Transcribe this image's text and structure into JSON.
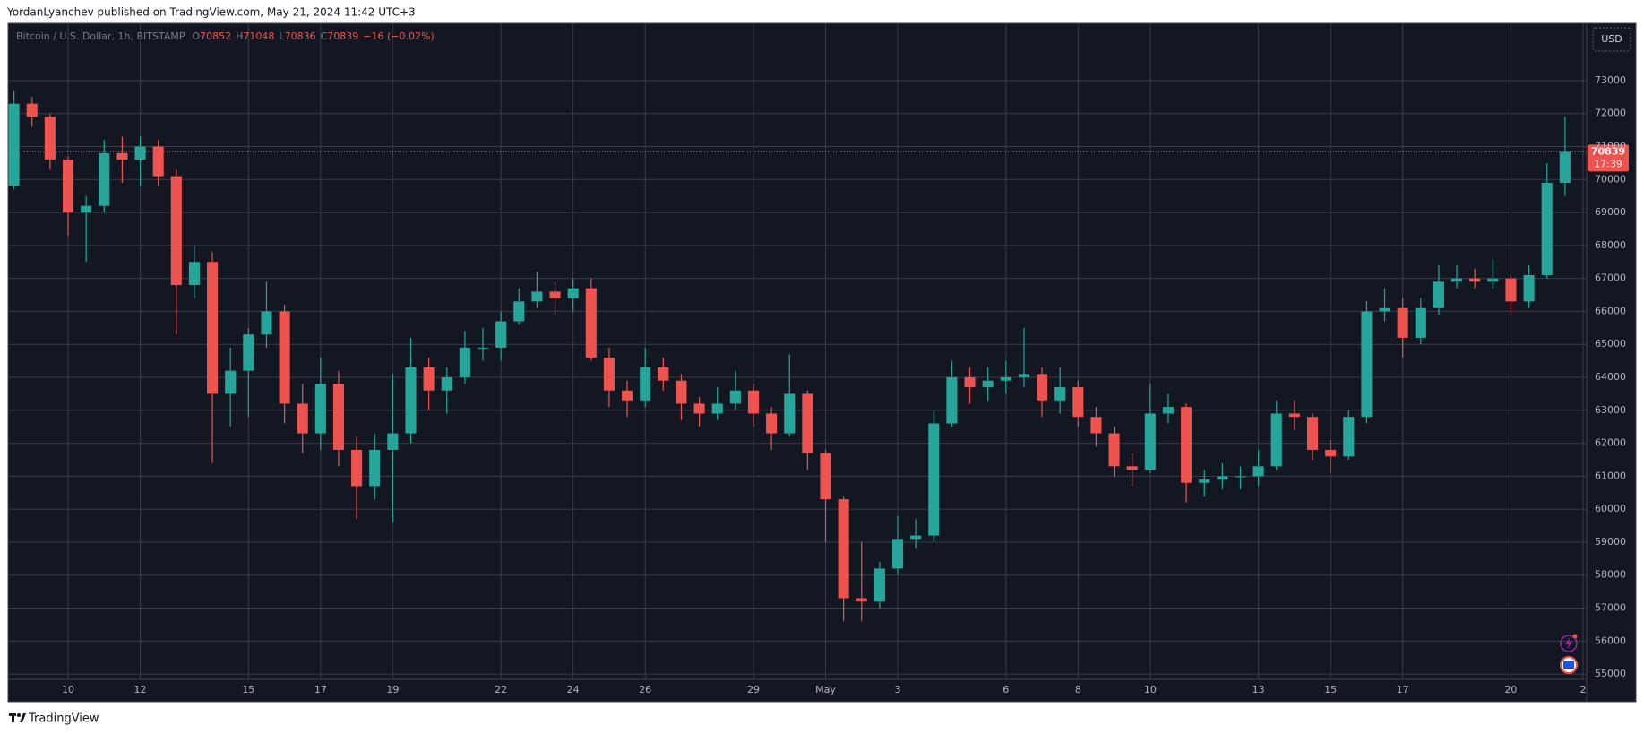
{
  "header": "YordanLyanchev published on TradingView.com, May 21, 2024 11:42 UTC+3",
  "footer": "TradingView",
  "chart_data": {
    "type": "candlestick",
    "legend": {
      "symbol": "Bitcoin / U.S. Dollar, 1h, BITSTAMP",
      "ohlc": [
        {
          "label": "O",
          "value": 70852
        },
        {
          "label": "H",
          "value": 71048
        },
        {
          "label": "L",
          "value": 70836
        },
        {
          "label": "C",
          "value": 70839
        }
      ],
      "change": "−16 (−0.02%)"
    },
    "currency": "USD",
    "price_tag": {
      "value": 70839,
      "countdown": "17:39"
    },
    "up_color": "#26a69a",
    "down_color": "#ef5350",
    "grid": true,
    "xlim": [
      8.41,
      52.1
    ],
    "xticks": [
      10,
      12,
      15,
      17,
      19,
      22,
      24,
      26,
      29,
      {
        "value": 31,
        "label": "May"
      },
      {
        "value": 33,
        "label": "3"
      },
      {
        "value": 36,
        "label": "6"
      },
      {
        "value": 38,
        "label": "8"
      },
      {
        "value": 40,
        "label": "10"
      },
      {
        "value": 43,
        "label": "13"
      },
      {
        "value": 45,
        "label": "15"
      },
      {
        "value": 47,
        "label": "17"
      },
      {
        "value": 50,
        "label": "20"
      },
      {
        "value": 52,
        "label": "2"
      }
    ],
    "ylim": [
      54840,
      74710
    ],
    "yticks": [
      55000,
      56000,
      57000,
      58000,
      59000,
      60000,
      61000,
      62000,
      63000,
      64000,
      65000,
      66000,
      67000,
      68000,
      69000,
      70000,
      71000,
      72000,
      73000
    ],
    "x": [
      8.5,
      9,
      9.5,
      10,
      10.5,
      11,
      11.5,
      12,
      12.5,
      13,
      13.5,
      14,
      14.5,
      15,
      15.5,
      16,
      16.5,
      17,
      17.5,
      18,
      18.5,
      19,
      19.5,
      20,
      20.5,
      21,
      21.5,
      22,
      22.5,
      23,
      23.5,
      24,
      24.5,
      25,
      25.5,
      26,
      26.5,
      27,
      27.5,
      28,
      28.5,
      29,
      29.5,
      30,
      30.5,
      31,
      31.5,
      32,
      32.5,
      33,
      33.5,
      34,
      34.5,
      35,
      35.5,
      36,
      36.5,
      37,
      37.5,
      38,
      38.5,
      39,
      39.5,
      40,
      40.5,
      41,
      41.5,
      42,
      42.5,
      43,
      43.5,
      44,
      44.5,
      45,
      45.5,
      46,
      46.5,
      47,
      47.5,
      48,
      48.5,
      49,
      49.5,
      50,
      50.5,
      51,
      51.5
    ],
    "candles": [
      [
        69800,
        72700,
        69700,
        72300
      ],
      [
        72300,
        72500,
        71600,
        71900
      ],
      [
        71900,
        72000,
        70300,
        70600
      ],
      [
        70600,
        70700,
        68300,
        69000
      ],
      [
        69000,
        69500,
        67500,
        69200
      ],
      [
        69200,
        71200,
        69000,
        70800
      ],
      [
        70800,
        71300,
        69900,
        70600
      ],
      [
        70600,
        71300,
        69800,
        71000
      ],
      [
        71000,
        71200,
        69800,
        70100
      ],
      [
        70100,
        70300,
        65300,
        66800
      ],
      [
        66800,
        68000,
        66400,
        67500
      ],
      [
        67500,
        67800,
        61400,
        63500
      ],
      [
        63500,
        64900,
        62500,
        64200
      ],
      [
        64200,
        65500,
        62800,
        65300
      ],
      [
        65300,
        66900,
        64900,
        66000
      ],
      [
        66000,
        66200,
        62600,
        63200
      ],
      [
        63200,
        63800,
        61700,
        62300
      ],
      [
        62300,
        64600,
        61800,
        63800
      ],
      [
        63800,
        64200,
        61300,
        61800
      ],
      [
        61800,
        62200,
        59700,
        60700
      ],
      [
        60700,
        62300,
        60300,
        61800
      ],
      [
        61800,
        64100,
        59600,
        62300
      ],
      [
        62300,
        65200,
        62000,
        64300
      ],
      [
        64300,
        64600,
        63000,
        63600
      ],
      [
        63600,
        64300,
        62900,
        64000
      ],
      [
        64000,
        65400,
        63800,
        64900
      ],
      [
        64900,
        65500,
        64500,
        64900
      ],
      [
        64900,
        66000,
        64500,
        65700
      ],
      [
        65700,
        66700,
        65600,
        66300
      ],
      [
        66300,
        67200,
        66100,
        66600
      ],
      [
        66600,
        66900,
        65900,
        66400
      ],
      [
        66400,
        67000,
        66000,
        66700
      ],
      [
        66700,
        67000,
        64500,
        64600
      ],
      [
        64600,
        64900,
        63100,
        63600
      ],
      [
        63600,
        63900,
        62800,
        63300
      ],
      [
        63300,
        64900,
        63100,
        64300
      ],
      [
        64300,
        64600,
        63600,
        63900
      ],
      [
        63900,
        64100,
        62700,
        63200
      ],
      [
        63200,
        63400,
        62500,
        62900
      ],
      [
        62900,
        63700,
        62700,
        63200
      ],
      [
        63200,
        64200,
        63000,
        63600
      ],
      [
        63600,
        63800,
        62500,
        62900
      ],
      [
        62900,
        63100,
        61800,
        62300
      ],
      [
        62300,
        64700,
        62200,
        63500
      ],
      [
        63500,
        63600,
        61200,
        61700
      ],
      [
        61700,
        61800,
        59000,
        60300
      ],
      [
        60300,
        60400,
        56600,
        57300
      ],
      [
        57300,
        59000,
        56600,
        57200
      ],
      [
        57200,
        58400,
        57000,
        58200
      ],
      [
        58200,
        59800,
        58000,
        59100
      ],
      [
        59100,
        59700,
        58800,
        59200
      ],
      [
        59200,
        63000,
        59000,
        62600
      ],
      [
        62600,
        64500,
        62500,
        64000
      ],
      [
        64000,
        64300,
        63200,
        63700
      ],
      [
        63700,
        64300,
        63300,
        63900
      ],
      [
        63900,
        64500,
        63500,
        64000
      ],
      [
        64000,
        65500,
        63700,
        64100
      ],
      [
        64100,
        64300,
        62800,
        63300
      ],
      [
        63300,
        64300,
        62900,
        63700
      ],
      [
        63700,
        63900,
        62500,
        62800
      ],
      [
        62800,
        63100,
        61900,
        62300
      ],
      [
        62300,
        62500,
        61000,
        61300
      ],
      [
        61300,
        61700,
        60700,
        61200
      ],
      [
        61200,
        63800,
        61100,
        62900
      ],
      [
        62900,
        63500,
        62600,
        63100
      ],
      [
        63100,
        63200,
        60200,
        60800
      ],
      [
        60800,
        61200,
        60400,
        60900
      ],
      [
        60900,
        61400,
        60600,
        61000
      ],
      [
        61000,
        61300,
        60600,
        61000
      ],
      [
        61000,
        61800,
        60700,
        61300
      ],
      [
        61300,
        63300,
        61200,
        62900
      ],
      [
        62900,
        63300,
        62400,
        62800
      ],
      [
        62800,
        62900,
        61500,
        61800
      ],
      [
        61800,
        62100,
        61100,
        61600
      ],
      [
        61600,
        63000,
        61500,
        62800
      ],
      [
        62800,
        66300,
        62600,
        66000
      ],
      [
        66000,
        66700,
        65700,
        66100
      ],
      [
        66100,
        66400,
        64600,
        65200
      ],
      [
        65200,
        66400,
        65000,
        66100
      ],
      [
        66100,
        67400,
        65900,
        66900
      ],
      [
        66900,
        67400,
        66700,
        67000
      ],
      [
        67000,
        67300,
        66700,
        66900
      ],
      [
        66900,
        67600,
        66700,
        67000
      ],
      [
        67000,
        67100,
        65900,
        66300
      ],
      [
        66300,
        67400,
        66100,
        67100
      ],
      [
        67100,
        70500,
        67000,
        69900
      ],
      [
        69900,
        71900,
        69500,
        70839
      ]
    ]
  }
}
